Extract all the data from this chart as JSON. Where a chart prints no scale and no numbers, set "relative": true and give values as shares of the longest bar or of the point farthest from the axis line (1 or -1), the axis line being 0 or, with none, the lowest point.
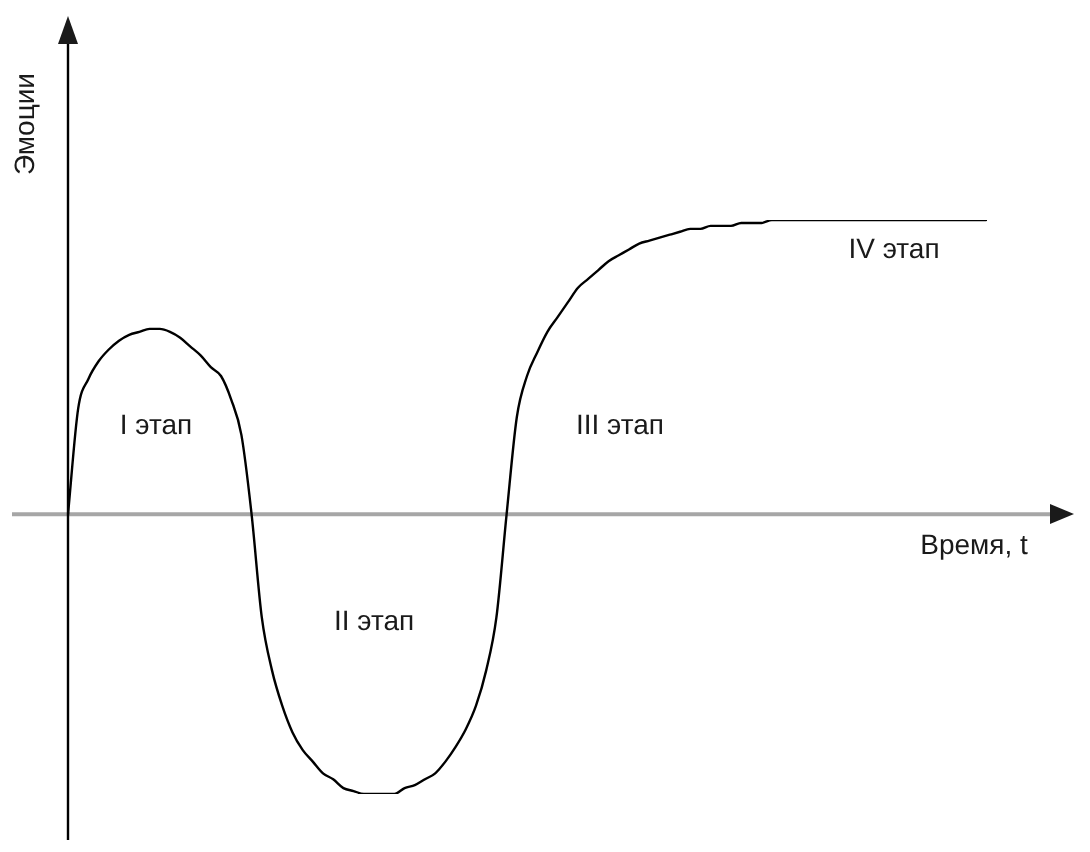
{
  "chart_data": {
    "type": "line",
    "relative": true,
    "xlabel": "Время, t",
    "ylabel": "Эмоции",
    "categories": [
      null,
      null,
      null,
      null,
      null,
      null,
      null,
      null,
      null,
      null,
      null,
      null,
      null,
      null,
      null,
      null,
      null,
      null,
      null,
      null,
      null,
      null,
      null,
      null,
      null,
      null,
      null,
      null,
      null,
      null,
      null,
      null,
      null,
      null,
      null,
      null,
      null,
      null,
      null,
      null,
      null,
      null,
      null,
      null,
      null,
      null,
      null,
      null,
      null,
      null,
      null,
      null,
      null,
      null,
      null,
      null,
      null,
      null,
      null,
      null,
      null,
      null,
      null,
      null,
      null,
      null,
      null,
      null,
      null,
      null,
      null,
      null,
      null,
      null,
      null,
      null,
      null,
      null,
      null,
      null,
      null,
      null,
      null,
      null,
      null,
      null,
      null,
      null,
      null,
      null,
      null
    ],
    "color": "#000000",
    "values": [
      0,
      0.36,
      0.46,
      0.52,
      0.56,
      0.59,
      0.61,
      0.62,
      0.63,
      0.63,
      0.62,
      0.6,
      0.57,
      0.54,
      0.5,
      0.47,
      0.39,
      0.27,
      0,
      -0.35,
      -0.53,
      -0.65,
      -0.74,
      -0.8,
      -0.84,
      -0.88,
      -0.9,
      -0.93,
      -0.94,
      -0.95,
      -0.95,
      -0.95,
      -0.95,
      -0.93,
      -0.92,
      -0.9,
      -0.88,
      -0.84,
      -0.79,
      -0.73,
      -0.65,
      -0.53,
      -0.35,
      0,
      0.33,
      0.47,
      0.55,
      0.62,
      0.67,
      0.72,
      0.77,
      0.8,
      0.83,
      0.86,
      0.88,
      0.9,
      0.92,
      0.93,
      0.94,
      0.95,
      0.96,
      0.97,
      0.97,
      0.98,
      0.98,
      0.98,
      0.99,
      0.99,
      0.99,
      1,
      1,
      1,
      1,
      1,
      1,
      1,
      1,
      1,
      1,
      1,
      1,
      1,
      1,
      1,
      1,
      1,
      1,
      1,
      1,
      1,
      1
    ],
    "annotations": [
      "I этап",
      "II этап",
      "III этап",
      "IV этап"
    ]
  }
}
